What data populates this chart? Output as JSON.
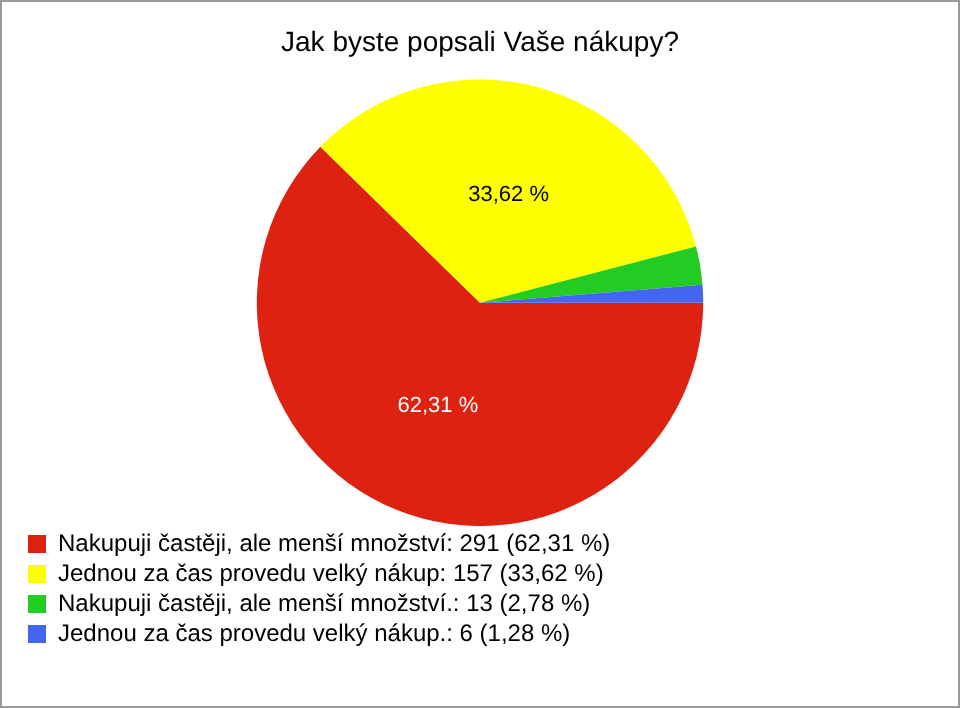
{
  "chart_data": {
    "type": "pie",
    "title": "Jak byste popsali Vaše nákupy?",
    "categories": [
      "Nakupuji častěji, ale menší množství: 291 (62,31 %)",
      "Jednou za čas provedu velký nákup: 157 (33,62 %)",
      "Nakupuji častěji, ale menší množství.: 13 (2,78 %)",
      "Jednou za čas provedu velký nákup.: 6 (1,28 %)"
    ],
    "values": [
      62.31,
      33.62,
      2.78,
      1.28
    ],
    "colors": [
      "#dd2211",
      "#ffff00",
      "#22cc22",
      "#4466ee"
    ],
    "value_labels": [
      "62,31 %",
      "33,62 %",
      null,
      null
    ],
    "legend": "bottom left"
  }
}
